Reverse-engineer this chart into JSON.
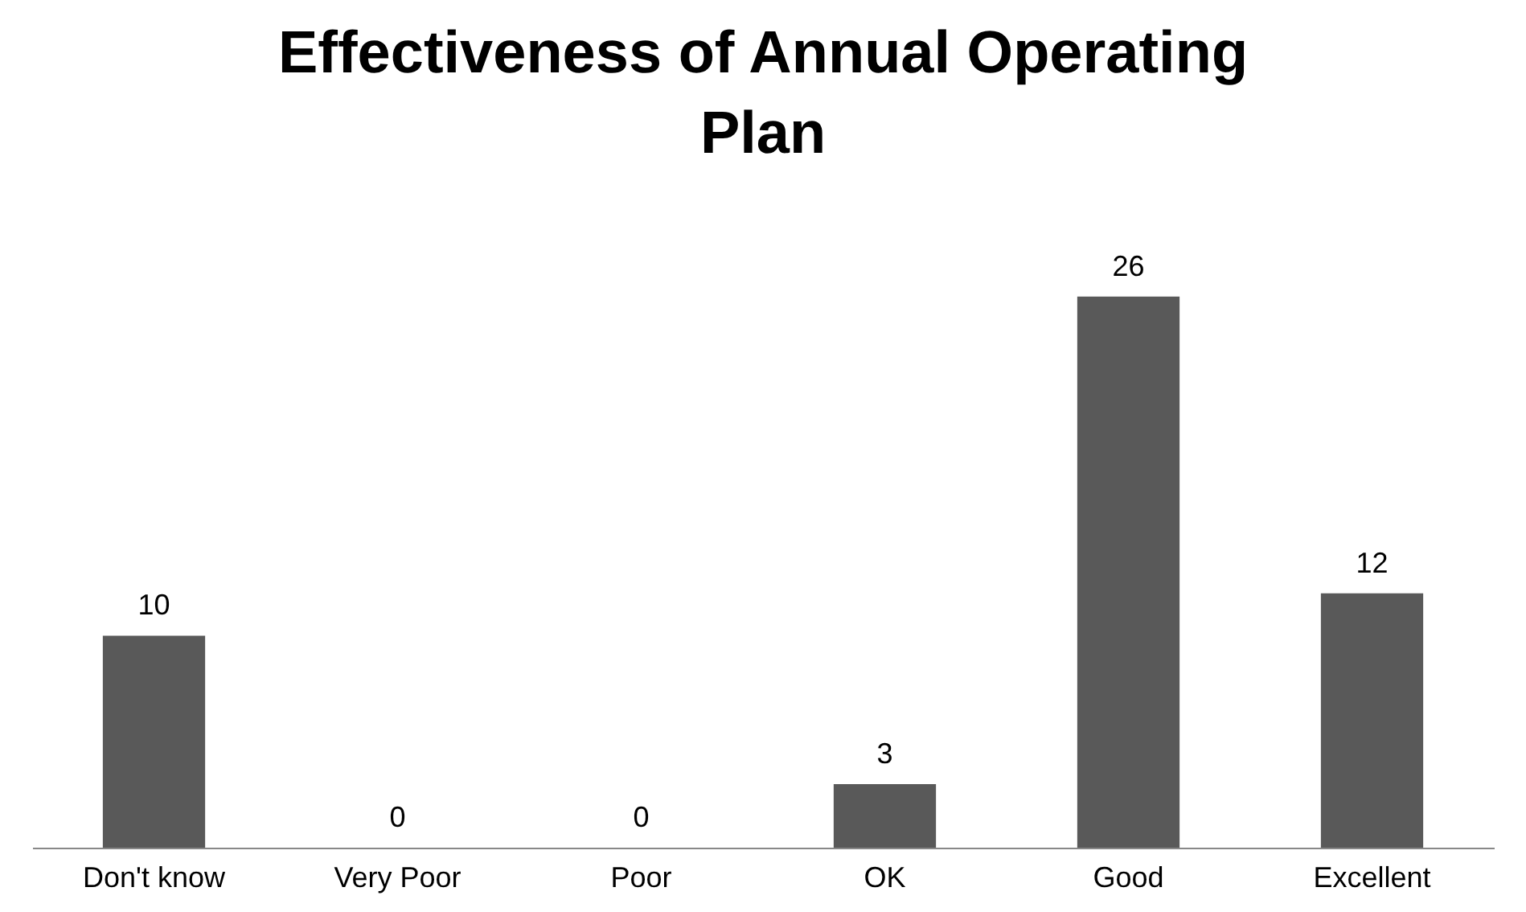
{
  "chart_data": {
    "type": "bar",
    "title": "Effectiveness of Annual Operating Plan",
    "categories": [
      "Don't know",
      "Very Poor",
      "Poor",
      "OK",
      "Good",
      "Excellent"
    ],
    "values": [
      10,
      0,
      0,
      3,
      26,
      12
    ],
    "color": "#595959",
    "data_labels": true
  }
}
